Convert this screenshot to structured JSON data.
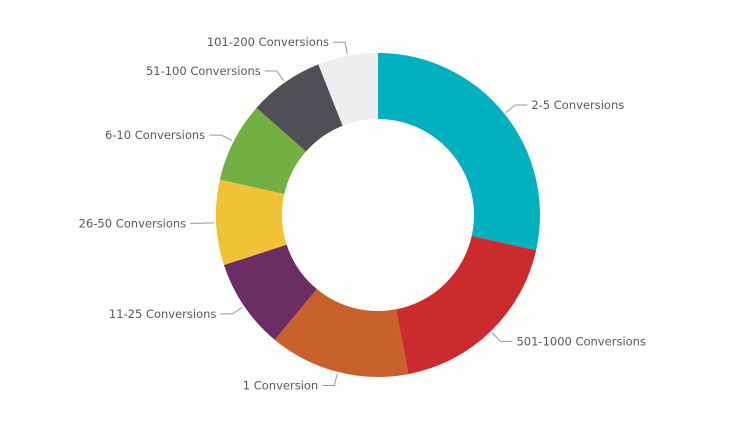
{
  "chart_data": {
    "type": "pie",
    "title": "",
    "categories": [
      "2-5 Conversions",
      "501-1000 Conversions",
      "1 Conversion",
      "11-25 Conversions",
      "26-50 Conversions",
      "6-10 Conversions",
      "51-100 Conversions",
      "101-200 Conversions"
    ],
    "values": [
      28.5,
      18.5,
      14,
      9,
      8.5,
      8,
      7.5,
      6
    ],
    "colors": [
      "#02b0bf",
      "#cc2b2e",
      "#c8612b",
      "#6b2d63",
      "#f2c236",
      "#72b043",
      "#4f4f55",
      "#eeedf0"
    ],
    "legend": "none",
    "donut": true
  }
}
